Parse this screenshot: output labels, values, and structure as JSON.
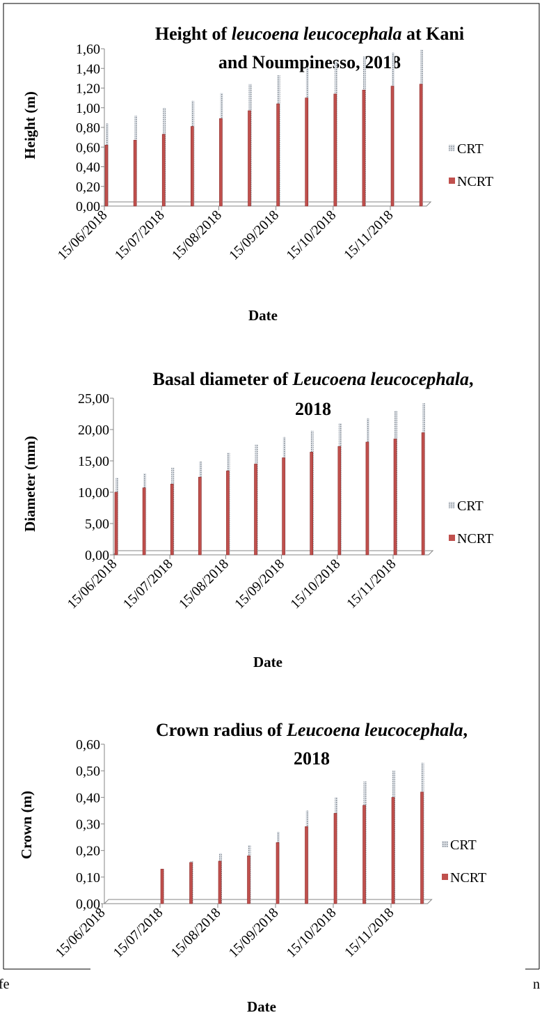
{
  "chart_data": [
    {
      "type": "bar",
      "title_lines": [
        [
          {
            "text": "Height of ",
            "italic": false
          },
          {
            "text": "leucoena leucocephala",
            "italic": true
          },
          {
            "text": " at Kani",
            "italic": false
          }
        ],
        [
          {
            "text": "and Noumpinesso, 2018",
            "italic": false
          }
        ]
      ],
      "ylabel": "Height (m)",
      "xlabel": "Date",
      "categories": [
        "15/06/2018",
        null,
        "15/07/2018",
        null,
        "15/08/2018",
        null,
        "15/09/2018",
        null,
        "15/10/2018",
        null,
        "15/11/2018",
        null
      ],
      "series": [
        {
          "name": "CRT",
          "color": "#a6a6a6",
          "values": [
            0.84,
            0.92,
            1.0,
            1.07,
            1.15,
            1.24,
            1.33,
            1.41,
            1.47,
            1.52,
            1.56,
            1.59
          ]
        },
        {
          "name": "NCRT",
          "color": "#c0504d",
          "values": [
            0.62,
            0.67,
            0.73,
            0.81,
            0.89,
            0.97,
            1.04,
            1.1,
            1.14,
            1.18,
            1.22,
            1.24
          ]
        }
      ],
      "ylim": [
        0,
        1.6
      ],
      "yticks": [
        {
          "value": 0,
          "label": "0,00"
        },
        {
          "value": 0.2,
          "label": "0,20"
        },
        {
          "value": 0.4,
          "label": "0,40"
        },
        {
          "value": 0.6,
          "label": "0,60"
        },
        {
          "value": 0.8,
          "label": "0,80"
        },
        {
          "value": 1.0,
          "label": "1,00"
        },
        {
          "value": 1.2,
          "label": "1,20"
        },
        {
          "value": 1.4,
          "label": "1,40"
        },
        {
          "value": 1.6,
          "label": "1,60"
        }
      ],
      "legend": "right"
    },
    {
      "type": "bar",
      "title_lines": [
        [
          {
            "text": "Basal diameter of ",
            "italic": false
          },
          {
            "text": "Leucoena leucocephala",
            "italic": true
          },
          {
            "text": ",",
            "italic": false
          }
        ],
        [
          {
            "text": "2018",
            "italic": false
          }
        ]
      ],
      "ylabel": "Diameter (mm)",
      "xlabel": "Date",
      "categories": [
        "15/06/2018",
        null,
        "15/07/2018",
        null,
        "15/08/2018",
        null,
        "15/09/2018",
        null,
        "15/10/2018",
        null,
        "15/11/2018",
        null
      ],
      "series": [
        {
          "name": "CRT",
          "color": "#a6a6a6",
          "values": [
            12.3,
            13.0,
            13.9,
            14.9,
            16.3,
            17.6,
            18.8,
            19.8,
            21.0,
            21.8,
            23.0,
            24.2
          ]
        },
        {
          "name": "NCRT",
          "color": "#c0504d",
          "values": [
            10.0,
            10.7,
            11.3,
            12.4,
            13.4,
            14.5,
            15.5,
            16.4,
            17.3,
            18.0,
            18.5,
            19.5
          ]
        }
      ],
      "ylim": [
        0,
        25
      ],
      "yticks": [
        {
          "value": 0,
          "label": "0,00"
        },
        {
          "value": 5,
          "label": "5,00"
        },
        {
          "value": 10,
          "label": "10,00"
        },
        {
          "value": 15,
          "label": "15,00"
        },
        {
          "value": 20,
          "label": "20,00"
        },
        {
          "value": 25,
          "label": "25,00"
        }
      ],
      "legend": "right"
    },
    {
      "type": "bar",
      "title_lines": [
        [
          {
            "text": "Crown radius of ",
            "italic": false
          },
          {
            "text": "Leucoena leucocephala",
            "italic": true
          },
          {
            "text": ",",
            "italic": false
          }
        ],
        [
          {
            "text": "2018",
            "italic": false
          }
        ]
      ],
      "ylabel": "Crown (m)",
      "xlabel": "Date",
      "categories": [
        "15/06/2018",
        null,
        "15/07/2018",
        null,
        "15/08/2018",
        null,
        "15/09/2018",
        null,
        "15/10/2018",
        null,
        "15/11/2018",
        null
      ],
      "series": [
        {
          "name": "CRT",
          "color": "#a6a6a6",
          "values": [
            0,
            0,
            0.13,
            0.16,
            0.19,
            0.22,
            0.27,
            0.35,
            0.4,
            0.46,
            0.5,
            0.53
          ]
        },
        {
          "name": "NCRT",
          "color": "#c0504d",
          "values": [
            0,
            0,
            0.13,
            0.155,
            0.16,
            0.18,
            0.23,
            0.29,
            0.34,
            0.37,
            0.4,
            0.42
          ]
        }
      ],
      "ylim": [
        0,
        0.6
      ],
      "yticks": [
        {
          "value": 0,
          "label": "0,00"
        },
        {
          "value": 0.1,
          "label": "0,10"
        },
        {
          "value": 0.2,
          "label": "0,20"
        },
        {
          "value": 0.3,
          "label": "0,30"
        },
        {
          "value": 0.4,
          "label": "0,40"
        },
        {
          "value": 0.5,
          "label": "0,50"
        },
        {
          "value": 0.6,
          "label": "0,60"
        }
      ],
      "legend": "right"
    }
  ],
  "caption_fragments": {
    "left": "fe",
    "right": "n"
  }
}
